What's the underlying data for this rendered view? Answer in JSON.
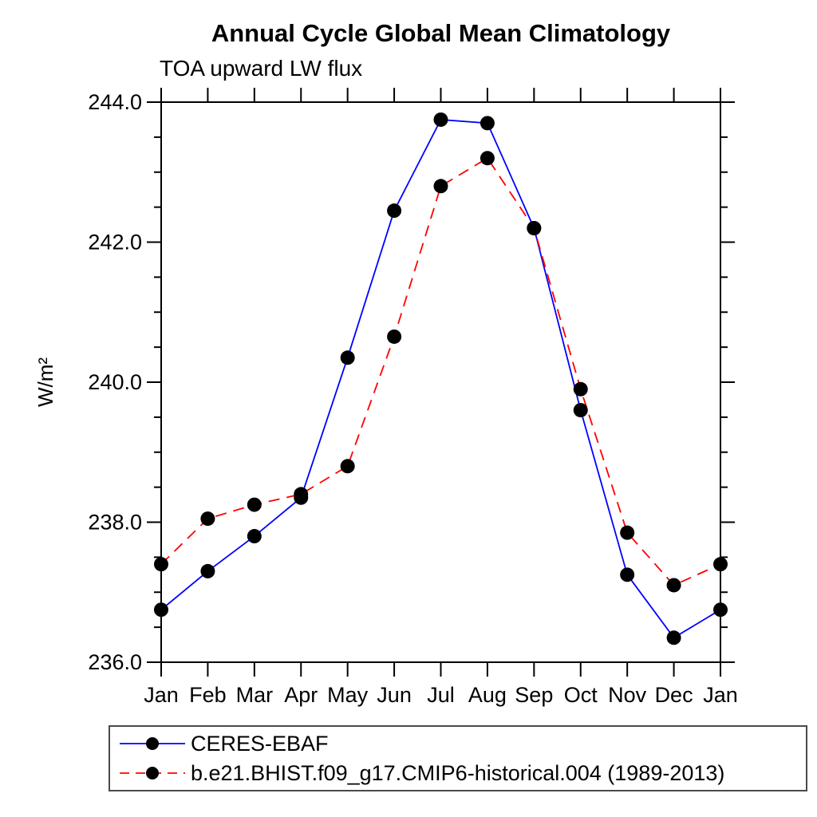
{
  "title": "Annual Cycle Global Mean Climatology",
  "subtitle": "TOA upward LW flux",
  "chart_data": {
    "type": "line",
    "title": "Annual Cycle Global Mean Climatology",
    "subtitle": "TOA upward LW flux",
    "ylabel": "W/m²",
    "categories": [
      "Jan",
      "Feb",
      "Mar",
      "Apr",
      "May",
      "Jun",
      "Jul",
      "Aug",
      "Sep",
      "Oct",
      "Nov",
      "Dec",
      "Jan"
    ],
    "ylim": [
      236.0,
      244.0
    ],
    "ytick_labels": [
      "236.0",
      "238.0",
      "240.0",
      "242.0",
      "244.0"
    ],
    "ytick_major_step": 2.0,
    "ytick_minor_step": 0.5,
    "grid": false,
    "legend_position": "bottom-left-box",
    "axis_color": "#000000",
    "marker_color": "#000000",
    "series": [
      {
        "name": "CERES-EBAF",
        "color": "#0000ff",
        "line_style": "solid",
        "marker": "circle",
        "values": [
          236.75,
          237.3,
          237.8,
          238.35,
          240.35,
          242.45,
          243.75,
          243.7,
          242.2,
          239.6,
          237.25,
          236.35,
          236.75
        ]
      },
      {
        "name": "b.e21.BHIST.f09_g17.CMIP6-historical.004 (1989-2013)",
        "color": "#ff0000",
        "line_style": "dashed",
        "marker": "circle",
        "values": [
          237.4,
          238.05,
          238.25,
          238.4,
          238.8,
          240.65,
          242.8,
          243.2,
          242.2,
          239.9,
          237.85,
          237.1,
          237.4
        ]
      }
    ]
  }
}
